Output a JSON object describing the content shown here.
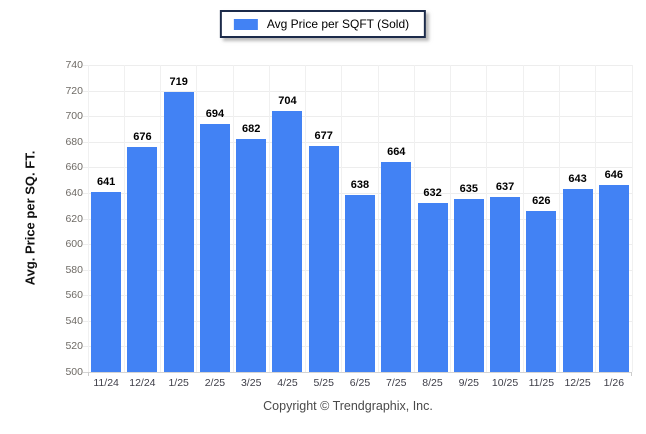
{
  "legend": {
    "label": "Avg Price per SQFT (Sold)"
  },
  "footer": {
    "text": "Copyright © Trendgraphix, Inc."
  },
  "colors": {
    "bar": "#4282f4",
    "grid": "#ededed",
    "baseline": "#d4d4d4",
    "legend_border": "#1c2b4a"
  },
  "chart_data": {
    "type": "bar",
    "title": "",
    "legend_entries": [
      "Avg Price per SQFT (Sold)"
    ],
    "legend_position": "top-center",
    "categories": [
      "11/24",
      "12/24",
      "1/25",
      "2/25",
      "3/25",
      "4/25",
      "5/25",
      "6/25",
      "7/25",
      "8/25",
      "9/25",
      "10/25",
      "11/25",
      "12/25",
      "1/26"
    ],
    "values": [
      641,
      676,
      719,
      694,
      682,
      704,
      677,
      638,
      664,
      632,
      635,
      637,
      626,
      643,
      646
    ],
    "xlabel": "",
    "ylabel": "Avg. Price per SQ. FT.",
    "ylim": [
      500,
      740
    ],
    "yticks": [
      500,
      520,
      540,
      560,
      580,
      600,
      620,
      640,
      660,
      680,
      700,
      720,
      740
    ],
    "grid": true,
    "bar_color": "#4282f4"
  }
}
